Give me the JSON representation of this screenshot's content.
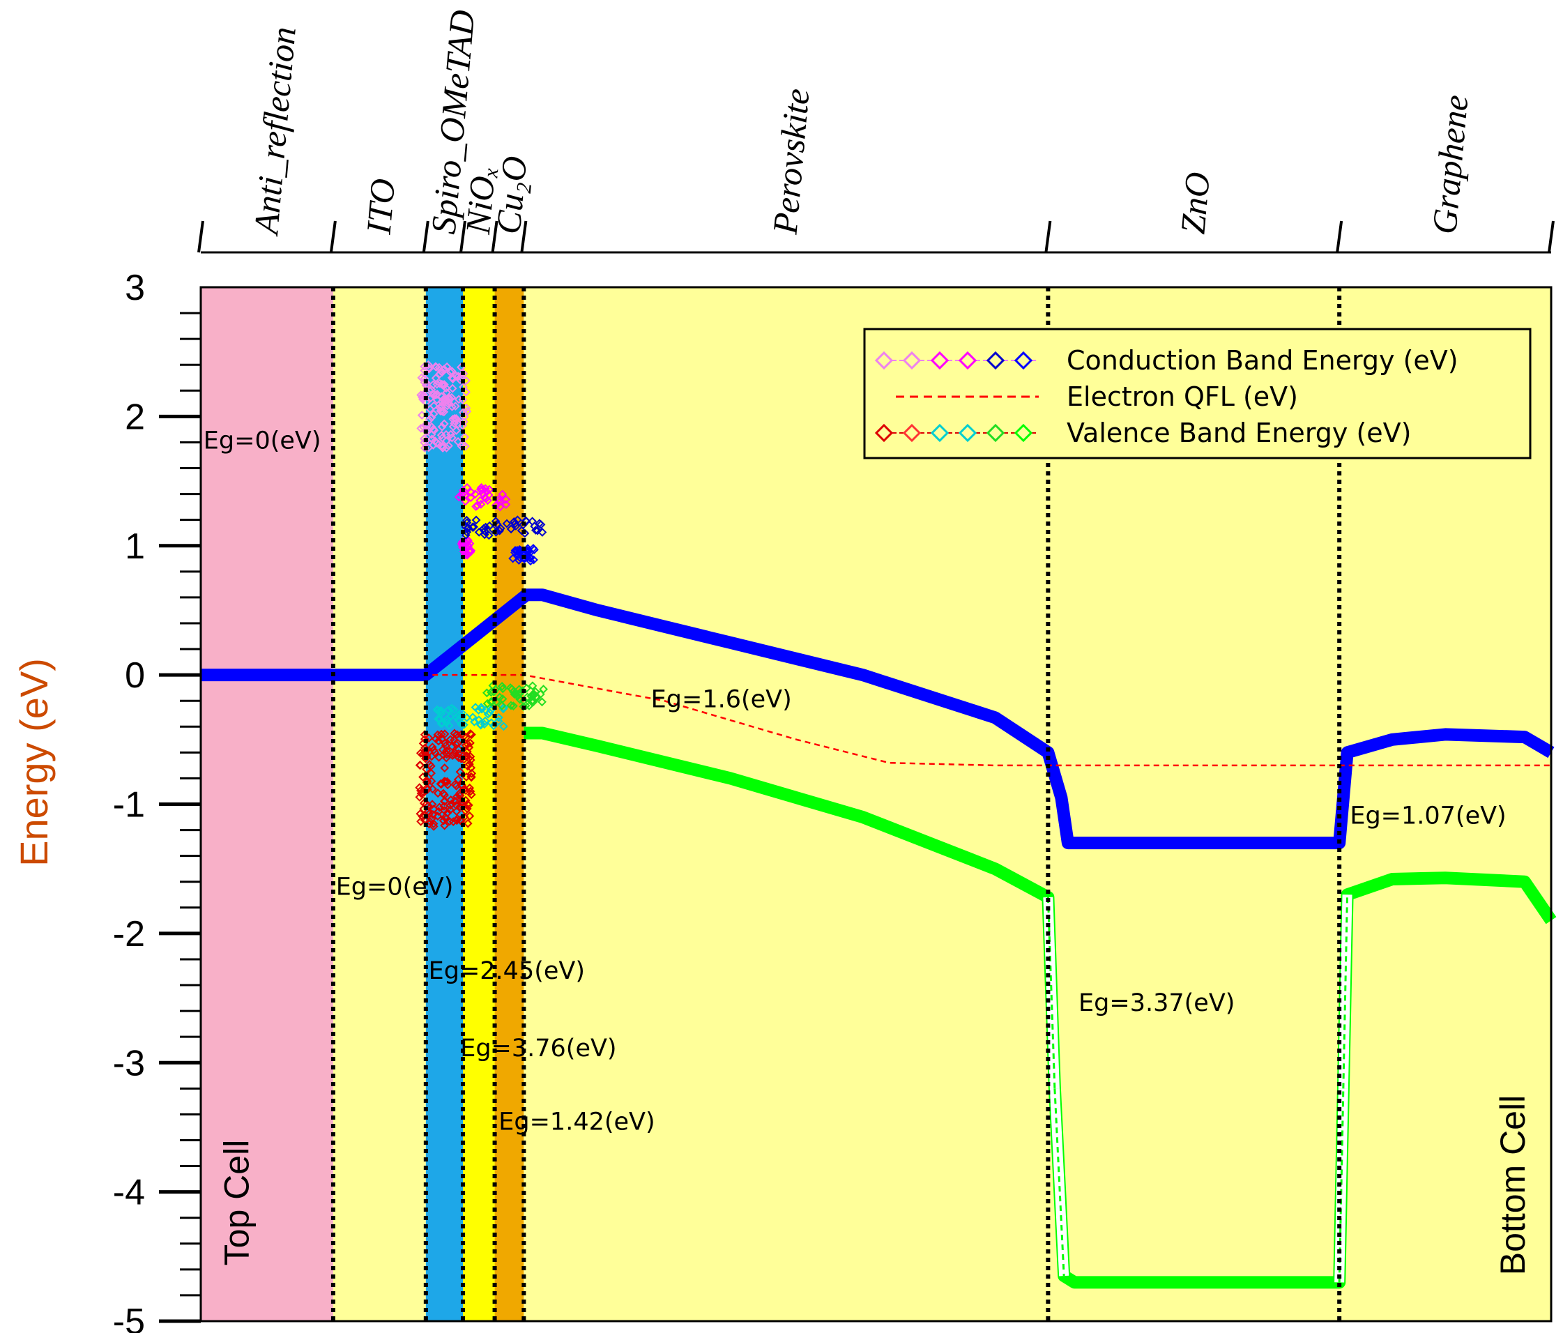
{
  "chart_data": {
    "type": "line",
    "ylabel": "Energy (eV)",
    "xlabel": "",
    "ylim": [
      -5,
      3
    ],
    "yticks": [
      "3",
      "2",
      "1",
      "0",
      "-1",
      "-2",
      "-3",
      "-4",
      "-5"
    ],
    "layers": [
      {
        "name": "Anti_reflection",
        "color": "#f8b0c8"
      },
      {
        "name": "ITO",
        "color": "#ffff99"
      },
      {
        "name": "Spiro_OMeTAD",
        "color": "#1ea7e8"
      },
      {
        "name": "NiOx",
        "color": "#ffff00"
      },
      {
        "name": "Cu2O",
        "color": "#f0a800"
      },
      {
        "name": "Perovskite",
        "color": "#ffff99"
      },
      {
        "name": "ZnO",
        "color": "#ffff99"
      },
      {
        "name": "Graphene",
        "color": "#ffff99"
      }
    ],
    "layer_labels": [
      "Anti_reflection",
      "ITO",
      "Spiro_OMeTAD",
      "NiOₓ",
      "Cu₂O",
      "Perovskite",
      "ZnO",
      "Graphene"
    ],
    "x_boundaries": [
      0,
      10,
      17,
      19.8,
      22.2,
      24.4,
      64,
      86,
      102
    ],
    "series": [
      {
        "name": "Conduction Band Energy (eV)",
        "color": "#0000ff",
        "x": [
          0,
          10,
          17,
          24.6,
          25.8,
          30,
          40,
          50,
          60,
          64,
          65,
          65.5,
          66,
          80,
          86,
          86.3,
          86.6,
          90,
          94,
          100,
          102
        ],
        "y": [
          0,
          0,
          0,
          0.62,
          0.62,
          0.5,
          0.25,
          0.0,
          -0.33,
          -0.6,
          -0.95,
          -1.3,
          -1.3,
          -1.3,
          -1.3,
          -0.95,
          -0.6,
          -0.5,
          -0.46,
          -0.48,
          -0.6
        ]
      },
      {
        "name": "Electron QFL (eV)",
        "color": "#ff0000",
        "x": [
          17.5,
          24.4,
          35,
          45,
          52,
          60,
          64,
          86,
          102
        ],
        "y": [
          0,
          0,
          -0.2,
          -0.5,
          -0.68,
          -0.7,
          -0.7,
          -0.7,
          -0.7
        ]
      },
      {
        "name": "Valence Band Energy (eV)",
        "color": "#00ff00",
        "x": [
          24.4,
          25.8,
          30,
          40,
          50,
          60,
          64,
          64.5,
          65.2,
          66,
          80,
          86,
          86.3,
          86.6,
          90,
          94,
          100,
          102
        ],
        "y": [
          -0.45,
          -0.45,
          -0.55,
          -0.8,
          -1.1,
          -1.5,
          -1.72,
          -3.2,
          -4.65,
          -4.7,
          -4.7,
          -4.7,
          -3.2,
          -1.7,
          -1.58,
          -1.57,
          -1.6,
          -1.9
        ]
      }
    ],
    "clusters": [
      {
        "layer": "Spiro_OMeTAD",
        "band": "conduction",
        "color": "#ee82ee",
        "x": [
          16.6,
          20.2
        ],
        "y": [
          1.75,
          2.4
        ]
      },
      {
        "layer": "NiOx",
        "band": "conduction",
        "color": "#ff00ff",
        "x": [
          19.5,
          23.2
        ],
        "y": [
          1.3,
          1.45
        ]
      },
      {
        "layer": "NiOx",
        "band": "conduction",
        "color": "#ff00ff",
        "x": [
          19.7,
          20.5
        ],
        "y": [
          0.92,
          1.05
        ]
      },
      {
        "layer": "Cu2O",
        "band": "conduction",
        "color": "#0000cc",
        "x": [
          20.0,
          26.0
        ],
        "y": [
          1.08,
          1.2
        ]
      },
      {
        "layer": "Cu2O",
        "band": "conduction",
        "color": "#0000ff",
        "x": [
          23.5,
          25.2
        ],
        "y": [
          0.88,
          0.98
        ]
      },
      {
        "layer": "Spiro_OMeTAD",
        "band": "valence",
        "color": "#00ced1",
        "x": [
          17.5,
          23.0
        ],
        "y": [
          -0.4,
          -0.25
        ]
      },
      {
        "layer": "Cu2O",
        "band": "valence",
        "color": "#22dd22",
        "x": [
          21.5,
          26.0
        ],
        "y": [
          -0.25,
          -0.08
        ]
      },
      {
        "layer": "Spiro_OMeTAD",
        "band": "valence",
        "color": "#dd0000",
        "x": [
          16.5,
          20.5
        ],
        "y": [
          -1.18,
          -0.45
        ]
      }
    ],
    "annotations": [
      {
        "text": "Eg=0(eV)",
        "x": 0.2,
        "y": 1.75
      },
      {
        "text": "Eg=0(eV)",
        "x": 10.2,
        "y": -1.7
      },
      {
        "text": "Eg=2.45(eV)",
        "x": 17.2,
        "y": -2.35
      },
      {
        "text": "Eg=3.76(eV)",
        "x": 19.6,
        "y": -2.95
      },
      {
        "text": "Eg=1.42(eV)",
        "x": 22.5,
        "y": -3.52
      },
      {
        "text": "Eg=1.6(eV)",
        "x": 34,
        "y": -0.25
      },
      {
        "text": "Eg=3.37(eV)",
        "x": 66.3,
        "y": -2.6
      },
      {
        "text": "Eg=1.07(eV)",
        "x": 86.8,
        "y": -1.15
      }
    ],
    "cell_labels": [
      "Top Cell",
      "Bottom Cell"
    ],
    "legend": {
      "position": "top-right",
      "entries": [
        {
          "label": "Conduction Band Energy (eV)",
          "style": "diamonds",
          "colors": [
            "#ee82ee",
            "#ee82ee",
            "#ff00ff",
            "#ff00ff",
            "#0000cc",
            "#0000ff"
          ]
        },
        {
          "label": "Electron QFL (eV)",
          "style": "dashed",
          "colors": [
            "#ff0000"
          ]
        },
        {
          "label": "Valence Band Energy (eV)",
          "style": "diamonds",
          "colors": [
            "#dd0000",
            "#ff3333",
            "#00ced1",
            "#00ced1",
            "#22dd22",
            "#00ff00"
          ]
        }
      ]
    }
  }
}
